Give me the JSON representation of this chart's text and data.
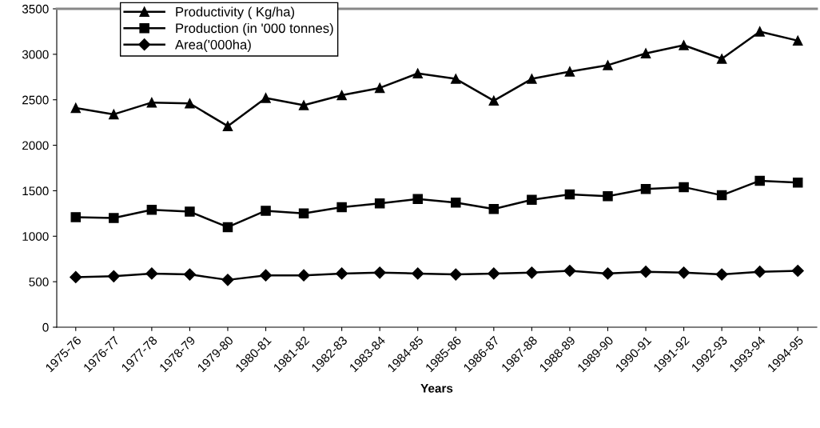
{
  "chart_data": {
    "type": "line",
    "xlabel": "Years",
    "categories": [
      "1975-76",
      "1976-77",
      "1977-78",
      "1978-79",
      "1979-80",
      "1980-81",
      "1981-82",
      "1982-83",
      "1983-84",
      "1984-85",
      "1985-86",
      "1986-87",
      "1987-88",
      "1988-89",
      "1989-90",
      "1990-91",
      "1991-92",
      "1992-93",
      "1993-94",
      "1994-95"
    ],
    "series": [
      {
        "name": "Productivity ( Kg/ha)",
        "color": "#000000",
        "marker": "triangle",
        "values": [
          2410,
          2340,
          2470,
          2460,
          2210,
          2520,
          2440,
          2550,
          2630,
          2790,
          2730,
          2490,
          2730,
          2810,
          2880,
          3010,
          3100,
          2950,
          3250,
          3150
        ]
      },
      {
        "name": "Production (in '000 tonnes)",
        "color": "#000000",
        "marker": "square",
        "values": [
          1210,
          1200,
          1290,
          1270,
          1100,
          1280,
          1250,
          1320,
          1360,
          1410,
          1370,
          1300,
          1400,
          1460,
          1440,
          1520,
          1540,
          1450,
          1610,
          1590
        ]
      },
      {
        "name": "Area('000ha)",
        "color": "#000000",
        "marker": "diamond",
        "values": [
          550,
          560,
          590,
          580,
          520,
          570,
          570,
          590,
          600,
          590,
          580,
          590,
          600,
          620,
          590,
          610,
          600,
          580,
          610,
          620
        ]
      }
    ],
    "ylim": [
      0,
      3500
    ],
    "yticks": [
      0,
      500,
      1000,
      1500,
      2000,
      2500,
      3000,
      3500
    ],
    "grid": false,
    "legend": "top left",
    "line_style": "solid"
  }
}
